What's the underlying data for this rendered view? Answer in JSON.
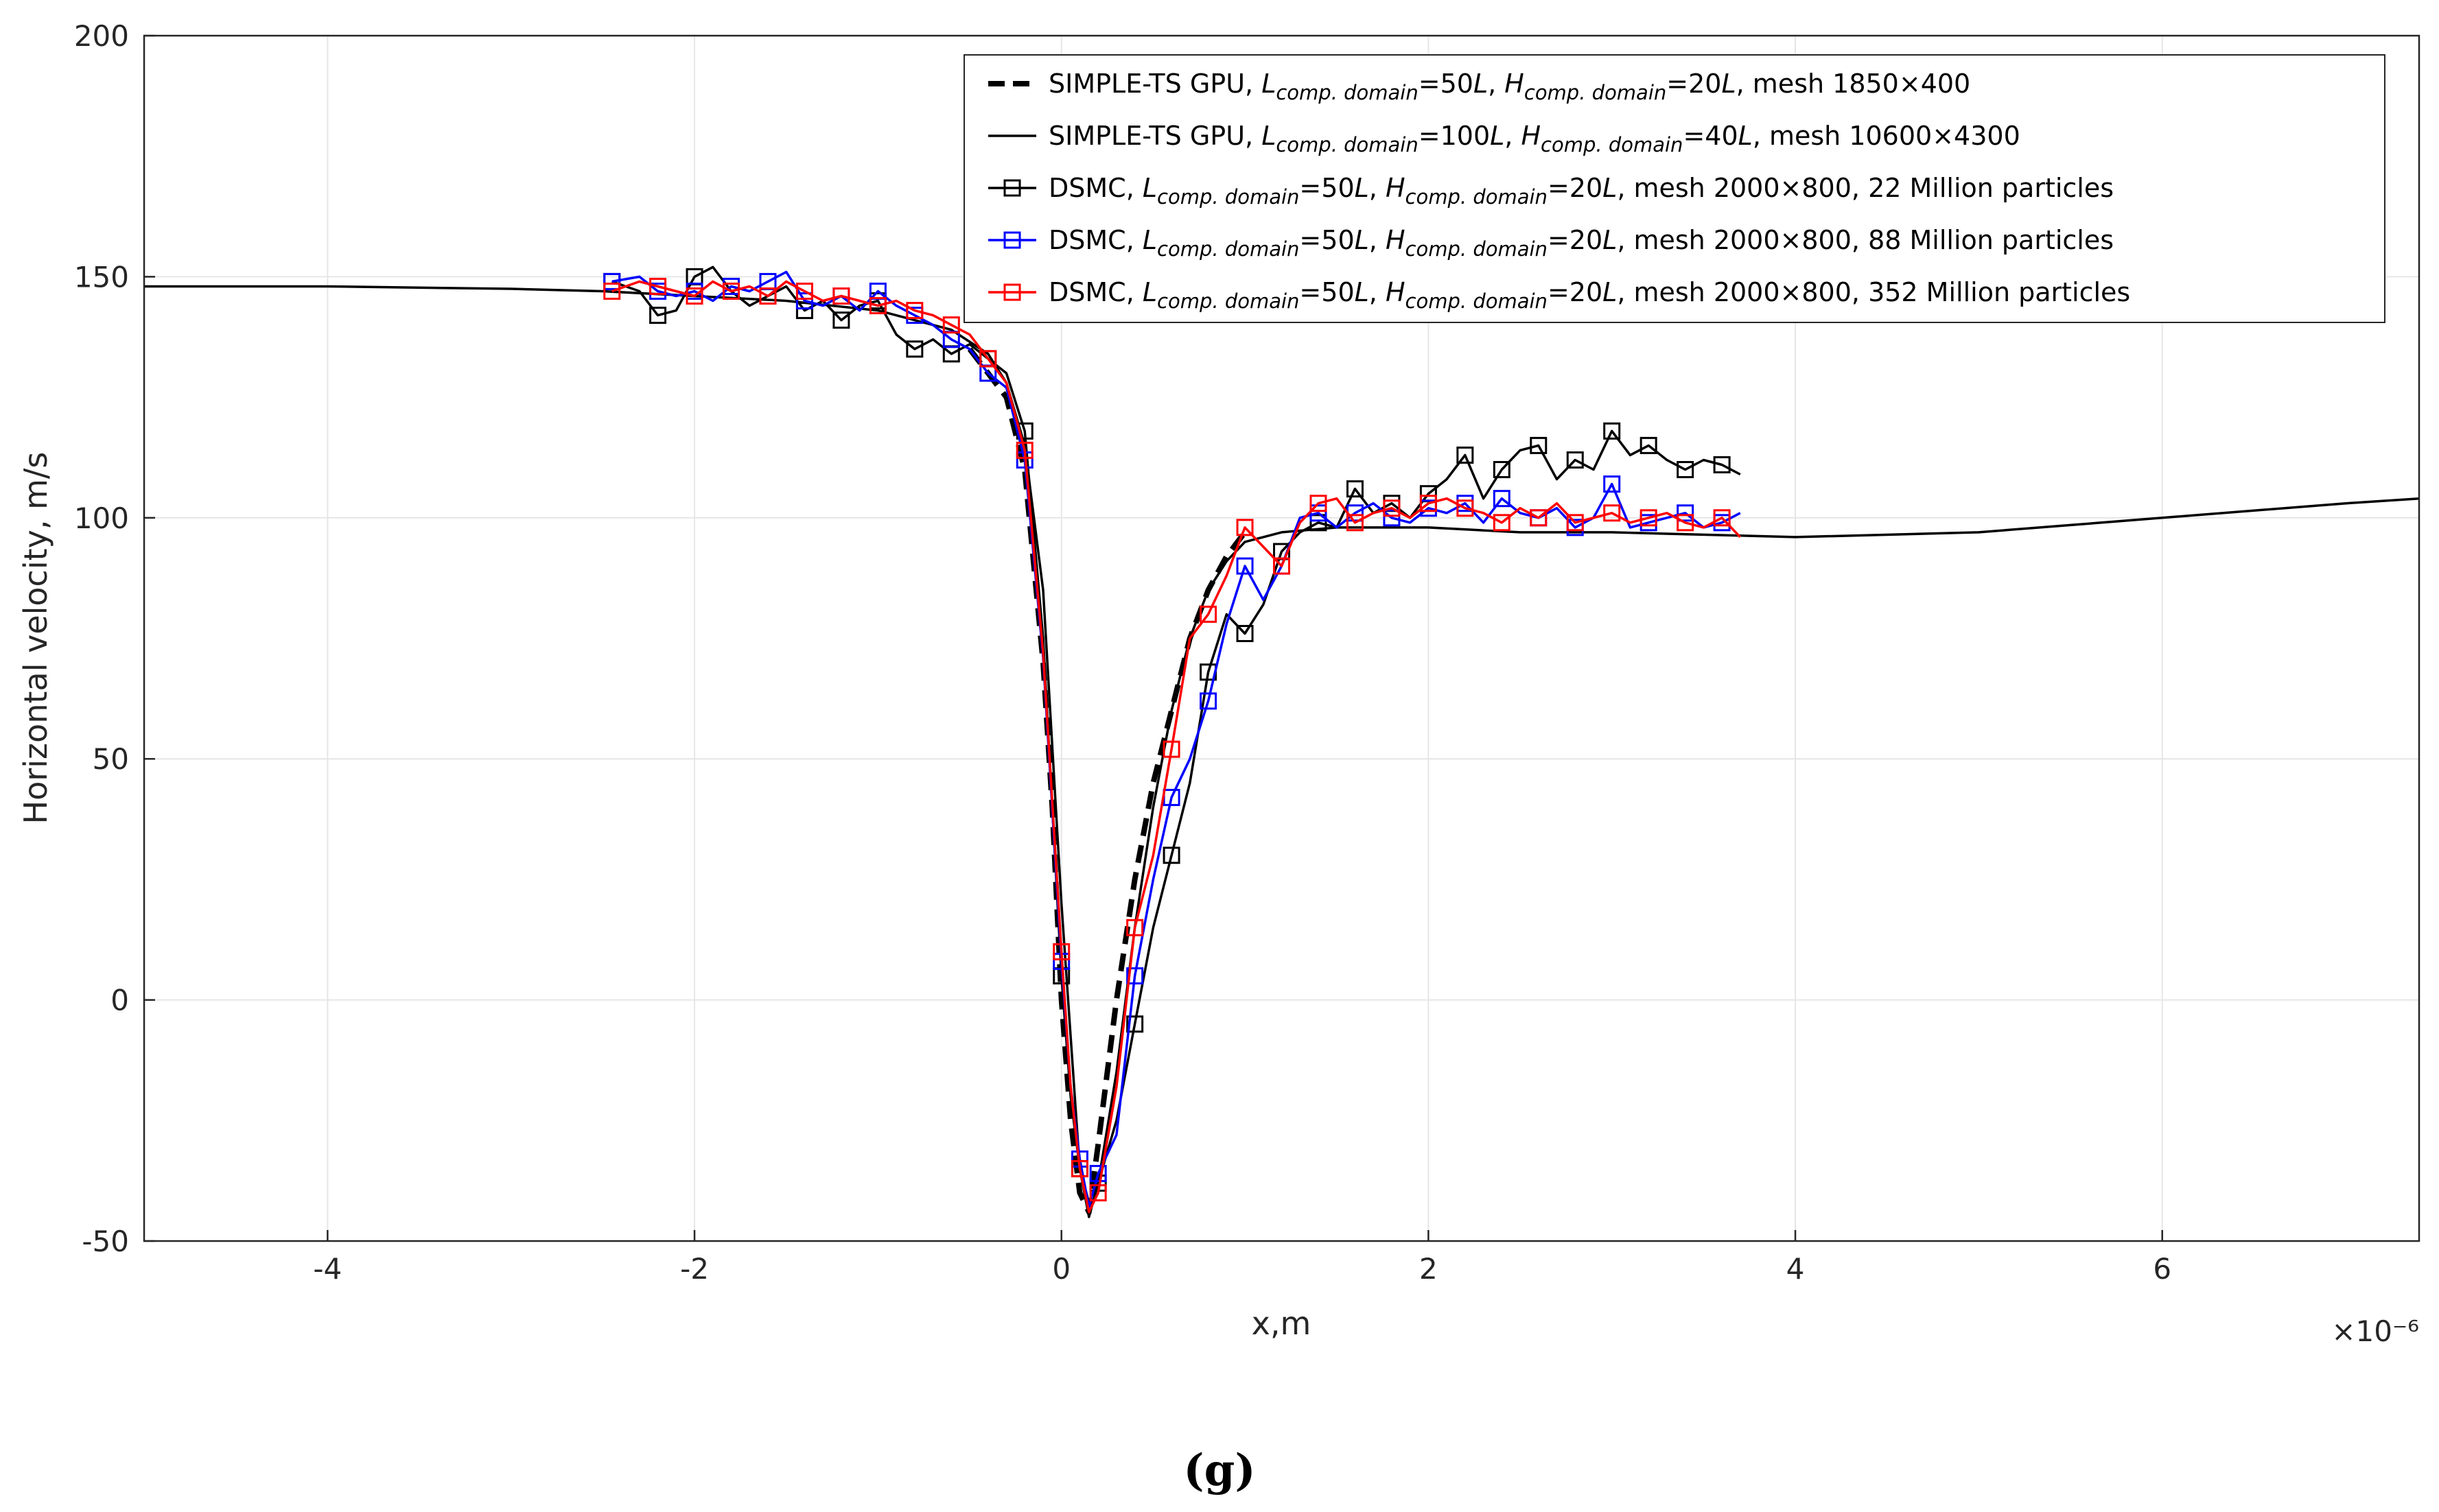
{
  "chart_data": {
    "type": "line",
    "title": "",
    "xlabel": "x,m",
    "ylabel": "Horizontal velocity, m/s",
    "x_multiplier": "×10⁻⁶",
    "xlim": [
      -5,
      7.4
    ],
    "ylim": [
      -50,
      200
    ],
    "xticks": [
      -4,
      -2,
      0,
      2,
      4,
      6
    ],
    "xtick_labels": [
      "-4",
      "-2",
      "0",
      "2",
      "4",
      "6"
    ],
    "yticks": [
      -50,
      0,
      50,
      100,
      150,
      200
    ],
    "ytick_labels": [
      "-50",
      "0",
      "50",
      "100",
      "150",
      "200"
    ],
    "grid": true,
    "legend_position": "top-right",
    "caption": "(g)",
    "series": [
      {
        "name": "SIMPLE-TS GPU, Lcomp. domain=50L, Hcomp. domain=20L, mesh 1850×400",
        "legend_parts": [
          "SIMPLE-TS GPU, ",
          "L",
          "comp. domain",
          "=50",
          "L",
          ", ",
          "H",
          "comp. domain",
          "=20",
          "L",
          ", mesh 1850×400"
        ],
        "color": "#000000",
        "style": "dashed",
        "marker": "none",
        "x": [
          -0.5,
          -0.3,
          -0.2,
          -0.1,
          -0.05,
          0,
          0.05,
          0.1,
          0.15,
          0.2,
          0.25,
          0.3,
          0.4,
          0.5,
          0.6,
          0.7,
          0.8,
          0.9,
          1.0
        ],
        "y": [
          135,
          125,
          110,
          70,
          40,
          0,
          -25,
          -40,
          -44,
          -30,
          -15,
          0,
          25,
          45,
          60,
          75,
          85,
          92,
          97
        ]
      },
      {
        "name": "SIMPLE-TS GPU, Lcomp. domain=100L, Hcomp. domain=40L, mesh 10600×4300",
        "legend_parts": [
          "SIMPLE-TS GPU, ",
          "L",
          "comp. domain",
          "=100",
          "L",
          ", ",
          "H",
          "comp. domain",
          "=40",
          "L",
          ", mesh 10600×4300"
        ],
        "color": "#000000",
        "style": "solid",
        "marker": "none",
        "x": [
          -5,
          -4,
          -3,
          -2.5,
          -2,
          -1.5,
          -1,
          -0.8,
          -0.6,
          -0.4,
          -0.3,
          -0.2,
          -0.1,
          0,
          0.1,
          0.15,
          0.2,
          0.3,
          0.4,
          0.5,
          0.6,
          0.7,
          0.8,
          0.9,
          1.0,
          1.2,
          1.5,
          2,
          2.5,
          3,
          3.5,
          4,
          5,
          6,
          7,
          7.4
        ],
        "y": [
          148,
          148,
          147.5,
          147,
          146,
          145,
          143,
          141,
          139,
          134,
          128,
          115,
          85,
          20,
          -35,
          -45,
          -38,
          -15,
          15,
          40,
          60,
          75,
          85,
          91,
          95,
          97,
          98,
          98,
          97,
          97,
          96.5,
          96,
          97,
          100,
          103,
          104
        ]
      },
      {
        "name": "DSMC, Lcomp. domain=50L, Hcomp. domain=20L, mesh 2000×800, 22 Million particles",
        "legend_parts": [
          "DSMC, ",
          "L",
          "comp. domain",
          "=50",
          "L",
          ", ",
          "H",
          "comp. domain",
          "=20",
          "L",
          ", mesh 2000×800,   22 Million particles"
        ],
        "color": "#000000",
        "style": "solid",
        "marker": "square",
        "x": [
          -2.45,
          -2.3,
          -2.2,
          -2.1,
          -2.0,
          -1.9,
          -1.8,
          -1.7,
          -1.6,
          -1.5,
          -1.4,
          -1.3,
          -1.2,
          -1.1,
          -1.0,
          -0.9,
          -0.8,
          -0.7,
          -0.6,
          -0.5,
          -0.4,
          -0.3,
          -0.2,
          -0.1,
          0,
          0.05,
          0.1,
          0.15,
          0.2,
          0.3,
          0.4,
          0.5,
          0.6,
          0.7,
          0.8,
          0.9,
          1.0,
          1.1,
          1.2,
          1.3,
          1.4,
          1.5,
          1.6,
          1.7,
          1.8,
          1.9,
          2.0,
          2.1,
          2.2,
          2.3,
          2.4,
          2.5,
          2.6,
          2.7,
          2.8,
          2.9,
          3.0,
          3.1,
          3.2,
          3.3,
          3.4,
          3.5,
          3.6,
          3.7
        ],
        "y": [
          149,
          147,
          142,
          143,
          150,
          152,
          147,
          144,
          146,
          148,
          143,
          145,
          141,
          144,
          145,
          138,
          135,
          137,
          134,
          136,
          133,
          130,
          118,
          75,
          5,
          -20,
          -35,
          -42,
          -38,
          -25,
          -5,
          15,
          30,
          45,
          68,
          80,
          76,
          82,
          93,
          97,
          99,
          98,
          106,
          101,
          103,
          100,
          105,
          108,
          113,
          104,
          110,
          114,
          115,
          108,
          112,
          110,
          118,
          113,
          115,
          112,
          110,
          112,
          111,
          109
        ],
        "marker_every": 2
      },
      {
        "name": "DSMC, Lcomp. domain=50L, Hcomp. domain=20L, mesh 2000×800, 88 Million particles",
        "legend_parts": [
          "DSMC, ",
          "L",
          "comp. domain",
          "=50",
          "L",
          ", ",
          "H",
          "comp. domain",
          "=20",
          "L",
          ", mesh 2000×800,   88 Million particles"
        ],
        "color": "#0000ff",
        "style": "solid",
        "marker": "square",
        "x": [
          -2.45,
          -2.3,
          -2.2,
          -2.1,
          -2.0,
          -1.9,
          -1.8,
          -1.7,
          -1.6,
          -1.5,
          -1.4,
          -1.3,
          -1.2,
          -1.1,
          -1.0,
          -0.9,
          -0.8,
          -0.7,
          -0.6,
          -0.5,
          -0.4,
          -0.3,
          -0.2,
          -0.1,
          0,
          0.05,
          0.1,
          0.15,
          0.2,
          0.3,
          0.4,
          0.5,
          0.6,
          0.7,
          0.8,
          0.9,
          1.0,
          1.1,
          1.2,
          1.3,
          1.4,
          1.5,
          1.6,
          1.7,
          1.8,
          1.9,
          2.0,
          2.1,
          2.2,
          2.3,
          2.4,
          2.5,
          2.6,
          2.7,
          2.8,
          2.9,
          3.0,
          3.1,
          3.2,
          3.3,
          3.4,
          3.5,
          3.6,
          3.7
        ],
        "y": [
          149,
          150,
          147,
          146,
          147,
          145,
          148,
          147,
          149,
          151,
          145,
          144,
          146,
          143,
          147,
          144,
          142,
          140,
          137,
          135,
          130,
          127,
          112,
          71,
          8,
          -18,
          -33,
          -43,
          -36,
          -28,
          5,
          25,
          42,
          50,
          62,
          78,
          90,
          83,
          90,
          100,
          101,
          98,
          101,
          103,
          100,
          99,
          102,
          101,
          103,
          99,
          104,
          101,
          100,
          102,
          98,
          100,
          107,
          98,
          99,
          100,
          101,
          98,
          99,
          101
        ],
        "marker_every": 2
      },
      {
        "name": "DSMC, Lcomp. domain=50L, Hcomp. domain=20L, mesh 2000×800, 352 Million particles",
        "legend_parts": [
          "DSMC, ",
          "L",
          "comp. domain",
          "=50",
          "L",
          ", ",
          "H",
          "comp. domain",
          "=20",
          "L",
          ", mesh 2000×800, 352 Million particles"
        ],
        "color": "#ff0000",
        "style": "solid",
        "marker": "square",
        "x": [
          -2.45,
          -2.3,
          -2.2,
          -2.1,
          -2.0,
          -1.9,
          -1.8,
          -1.7,
          -1.6,
          -1.5,
          -1.4,
          -1.3,
          -1.2,
          -1.1,
          -1.0,
          -0.9,
          -0.8,
          -0.7,
          -0.6,
          -0.5,
          -0.4,
          -0.3,
          -0.2,
          -0.1,
          0,
          0.05,
          0.1,
          0.15,
          0.2,
          0.3,
          0.4,
          0.5,
          0.6,
          0.7,
          0.8,
          0.9,
          1.0,
          1.1,
          1.2,
          1.3,
          1.4,
          1.5,
          1.6,
          1.7,
          1.8,
          1.9,
          2.0,
          2.1,
          2.2,
          2.3,
          2.4,
          2.5,
          2.6,
          2.7,
          2.8,
          2.9,
          3.0,
          3.1,
          3.2,
          3.3,
          3.4,
          3.5,
          3.6,
          3.7
        ],
        "y": [
          147,
          149,
          148,
          147,
          146,
          149,
          147,
          148,
          146,
          149,
          147,
          145,
          146,
          145,
          144,
          145,
          143,
          142,
          140,
          138,
          133,
          128,
          114,
          72,
          10,
          -18,
          -35,
          -44,
          -40,
          -18,
          15,
          30,
          52,
          75,
          80,
          88,
          98,
          94,
          90,
          99,
          103,
          104,
          99,
          101,
          102,
          100,
          103,
          104,
          102,
          101,
          99,
          102,
          100,
          103,
          99,
          100,
          101,
          99,
          100,
          101,
          99,
          98,
          100,
          96
        ],
        "marker_every": 2
      }
    ]
  }
}
